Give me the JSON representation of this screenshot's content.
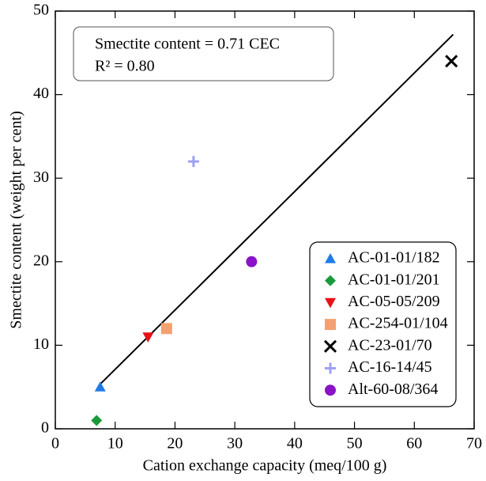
{
  "chart_data": {
    "type": "scatter",
    "x_label": "Cation exchange capacity (meq/100 g)",
    "y_label": "Smectite content (weight per cent)",
    "annotations": [
      "Smectite content = 0.71 CEC",
      "R² = 0.80"
    ],
    "xlim": [
      0,
      70
    ],
    "xticks": [
      0,
      10,
      20,
      30,
      40,
      50,
      60,
      70
    ],
    "ylim": [
      0,
      50
    ],
    "yticks": [
      0,
      10,
      20,
      30,
      40,
      50
    ],
    "legend": "lower right",
    "fit_line": {
      "color": "#000000",
      "x": [
        7.3,
        66.5
      ],
      "values": [
        5.2,
        47.2
      ]
    },
    "series": [
      {
        "name": "AC-01-01/182",
        "color": "#1f7be8",
        "marker": "triangle-up",
        "x": [
          7.5
        ],
        "values": [
          5
        ]
      },
      {
        "name": "AC-01-01/201",
        "color": "#1a9a3a",
        "marker": "diamond",
        "x": [
          6.9
        ],
        "values": [
          1
        ]
      },
      {
        "name": "AC-05-05/209",
        "color": "#e8101a",
        "marker": "triangle-down",
        "x": [
          15.5
        ],
        "values": [
          11
        ]
      },
      {
        "name": "AC-254-01/104",
        "color": "#f4a070",
        "marker": "square",
        "x": [
          18.6
        ],
        "values": [
          12
        ]
      },
      {
        "name": "AC-23-01/70",
        "color": "#000000",
        "marker": "x",
        "x": [
          66.2
        ],
        "values": [
          44
        ]
      },
      {
        "name": "AC-16-14/45",
        "color": "#a0a0f8",
        "marker": "plus",
        "x": [
          23.1
        ],
        "values": [
          32
        ]
      },
      {
        "name": "Alt-60-08/364",
        "color": "#8a12c8",
        "marker": "circle",
        "x": [
          32.8
        ],
        "values": [
          20
        ]
      }
    ]
  }
}
